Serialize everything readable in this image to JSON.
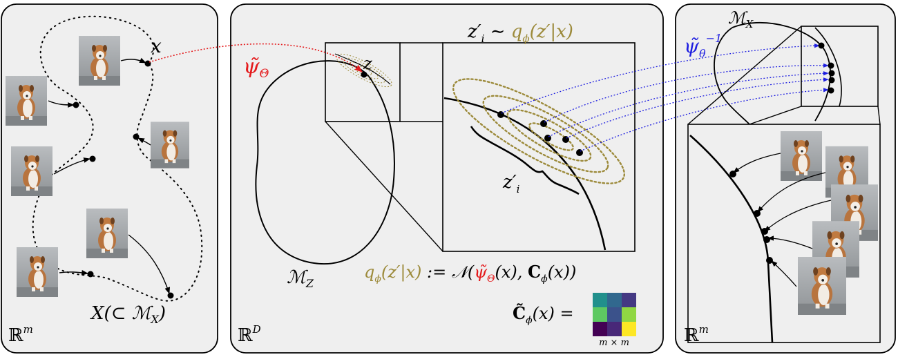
{
  "panels": {
    "left": {
      "space": "ℝ",
      "space_exp": "m"
    },
    "middle": {
      "space": "ℝ",
      "space_exp": "D"
    },
    "right": {
      "space": "ℝ",
      "space_exp": "m"
    }
  },
  "labels": {
    "x": "x",
    "data_manifold_main": "X(⊂ ",
    "data_manifold_M": "ℳ",
    "data_manifold_sub": "X",
    "data_manifold_close": ")",
    "encoder_psi": "ψ̃",
    "encoder_sub": "Θ",
    "latent_z": "z",
    "latent_manifold_M": "ℳ",
    "latent_manifold_sub": "Z",
    "sample_eq_left": "z′",
    "sample_eq_left_sub": "i",
    "sample_eq_sim": " ∼ ",
    "sample_eq_q": "q",
    "sample_eq_q_sub": "ϕ",
    "sample_eq_args": "(z′|x)",
    "zi_prime": "z′",
    "zi_prime_sub": "i",
    "posterior_q": "q",
    "posterior_q_sub": "ϕ",
    "posterior_args": "(z′|x)",
    "posterior_def": " := 𝒩(",
    "posterior_psi": "ψ̃",
    "posterior_psi_sub": "Θ",
    "posterior_mid": "(x), ",
    "posterior_C": "C",
    "posterior_C_sub": "ϕ",
    "posterior_end": "(x))",
    "cov_lhs": "C̃",
    "cov_lhs_sub": "ϕ",
    "cov_lhs_tail": "(x) =",
    "cov_dims": "m × m",
    "decoder_psi": "ψ̃",
    "decoder_sub": "θ",
    "decoder_sup": "−1",
    "right_manifold_M": "ℳ",
    "right_manifold_sub": "X"
  },
  "colors": {
    "encoder": "#e41a1c",
    "decoder": "#1f1fe0",
    "gaussian": "#9c8a3a",
    "panel_bg": "#efefef",
    "cov": [
      "#21908c",
      "#31688e",
      "#443983",
      "#5ec962",
      "#3b528b",
      "#90d743",
      "#440154",
      "#482878",
      "#fde725"
    ]
  }
}
